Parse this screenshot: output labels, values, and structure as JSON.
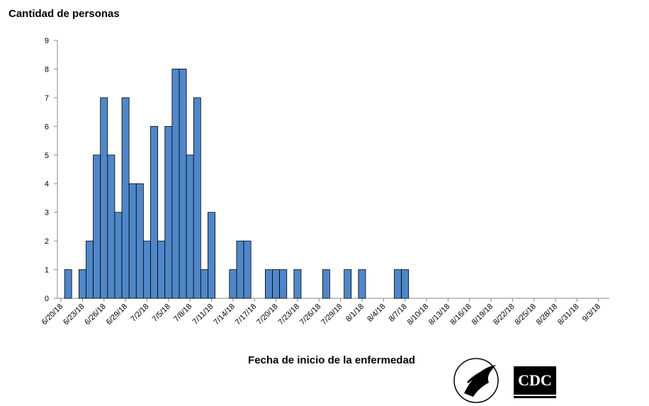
{
  "chart_data": {
    "type": "bar",
    "title": "Cantidad de personas",
    "x_label": "Fecha de inicio de la enfermedad",
    "logo_text": "CDC",
    "color": "#4f87c9",
    "categories": [
      "6/20/18",
      null,
      null,
      "6/23/18",
      null,
      null,
      "6/26/18",
      null,
      null,
      "6/29/18",
      null,
      null,
      "7/2/18",
      null,
      null,
      "7/5/18",
      null,
      null,
      "7/8/18",
      null,
      null,
      "7/11/18",
      null,
      null,
      "7/14/18",
      null,
      null,
      "7/17/18",
      null,
      null,
      "7/20/18",
      null,
      null,
      "7/23/18",
      null,
      null,
      "7/26/18",
      null,
      null,
      "7/29/18",
      null,
      null,
      "8/1/18",
      null,
      null,
      "8/4/18",
      null,
      null,
      "8/7/18",
      null,
      null,
      "8/10/18",
      null,
      null,
      "8/13/18",
      null,
      null,
      "8/16/18",
      null,
      null,
      "8/19/18",
      null,
      null,
      "8/22/18",
      null,
      null,
      "8/25/18",
      null,
      null,
      "8/28/18",
      null,
      null,
      "8/31/18",
      null,
      null,
      "9/3/18",
      null
    ],
    "values": [
      0,
      1,
      0,
      1,
      2,
      5,
      7,
      5,
      3,
      7,
      4,
      4,
      2,
      6,
      2,
      6,
      8,
      8,
      5,
      7,
      1,
      3,
      0,
      0,
      1,
      2,
      2,
      0,
      0,
      1,
      1,
      1,
      0,
      1,
      0,
      0,
      0,
      1,
      0,
      0,
      1,
      0,
      1,
      0,
      0,
      0,
      0,
      1,
      1,
      0,
      0,
      0,
      0,
      0,
      0,
      0,
      0,
      0,
      0,
      0,
      0,
      0,
      0,
      0,
      0,
      0,
      0,
      0,
      0,
      0,
      0,
      0,
      0,
      0,
      0,
      0,
      0
    ],
    "ylim": [
      0,
      9
    ],
    "yticks": [
      0,
      1,
      2,
      3,
      4,
      5,
      6,
      7,
      8,
      9
    ],
    "grid": false
  }
}
